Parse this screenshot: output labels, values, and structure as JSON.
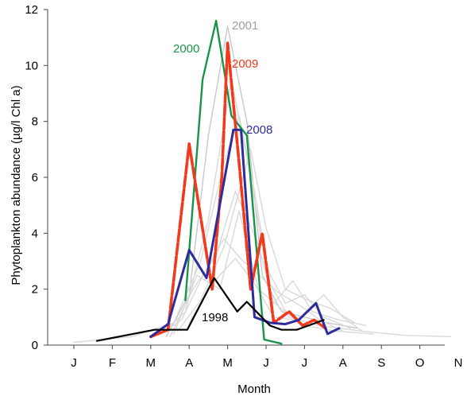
{
  "chart_data": {
    "type": "line",
    "xlabel": "Month",
    "ylabel": "Phytoplankton abundance (µg/l Chl a)",
    "ylim": [
      0,
      12
    ],
    "yticks": [
      0,
      2,
      4,
      6,
      8,
      10,
      12
    ],
    "categories": [
      "J",
      "F",
      "M",
      "A",
      "M",
      "J",
      "J",
      "A",
      "S",
      "O",
      "N"
    ],
    "xlim": [
      0,
      10
    ],
    "grid": false,
    "legend": "none",
    "series": [
      {
        "name": "2000",
        "color": "#18944a",
        "emphasis": true,
        "points": [
          [
            2.9,
            1.6
          ],
          [
            3.35,
            9.5
          ],
          [
            3.7,
            11.6
          ],
          [
            4.1,
            8.2
          ],
          [
            4.5,
            7.5
          ],
          [
            4.95,
            0.2
          ],
          [
            5.4,
            0.05
          ]
        ]
      },
      {
        "name": "2009",
        "color": "#f2391c",
        "emphasis": true,
        "points": [
          [
            2.0,
            0.3
          ],
          [
            2.45,
            0.55
          ],
          [
            3.0,
            7.2
          ],
          [
            3.25,
            5.0
          ],
          [
            3.6,
            2.0
          ],
          [
            3.85,
            6.0
          ],
          [
            4.0,
            10.8
          ],
          [
            4.3,
            6.5
          ],
          [
            4.6,
            2.0
          ],
          [
            4.9,
            4.0
          ],
          [
            5.2,
            0.8
          ],
          [
            5.6,
            1.2
          ],
          [
            5.95,
            0.7
          ],
          [
            6.25,
            0.9
          ],
          [
            6.55,
            0.6
          ]
        ]
      },
      {
        "name": "2008",
        "color": "#2e2c9c",
        "emphasis": true,
        "points": [
          [
            2.0,
            0.3
          ],
          [
            2.45,
            0.75
          ],
          [
            3.0,
            3.4
          ],
          [
            3.45,
            2.4
          ],
          [
            4.15,
            7.7
          ],
          [
            4.35,
            7.7
          ],
          [
            4.7,
            1.0
          ],
          [
            5.1,
            0.8
          ],
          [
            5.5,
            0.75
          ],
          [
            5.85,
            0.9
          ],
          [
            6.3,
            1.5
          ],
          [
            6.6,
            0.4
          ],
          [
            6.9,
            0.6
          ]
        ]
      },
      {
        "name": "1998",
        "color": "#000000",
        "emphasis": true,
        "points": [
          [
            0.6,
            0.15
          ],
          [
            2.1,
            0.55
          ],
          [
            2.95,
            0.55
          ],
          [
            3.65,
            2.4
          ],
          [
            4.25,
            1.2
          ],
          [
            4.5,
            1.55
          ],
          [
            5.1,
            0.7
          ],
          [
            5.4,
            0.55
          ],
          [
            5.8,
            0.55
          ],
          [
            6.5,
            0.9
          ]
        ]
      },
      {
        "name": "2001",
        "color": "#c8c8c8",
        "emphasis": false,
        "points": [
          [
            2.4,
            0.3
          ],
          [
            3.0,
            1.8
          ],
          [
            3.5,
            7.5
          ],
          [
            4.0,
            11.4
          ],
          [
            4.5,
            8.0
          ],
          [
            4.9,
            2.5
          ],
          [
            5.4,
            1.2
          ],
          [
            6.0,
            1.0
          ],
          [
            6.6,
            0.8
          ],
          [
            7.4,
            0.6
          ]
        ]
      },
      {
        "name": "",
        "color": "#d9d9d9",
        "emphasis": false,
        "points": [
          [
            0.0,
            0.1
          ],
          [
            1.5,
            0.3
          ],
          [
            2.6,
            0.8
          ],
          [
            3.3,
            3.0
          ],
          [
            3.9,
            6.5
          ],
          [
            4.3,
            8.2
          ],
          [
            4.7,
            5.5
          ],
          [
            5.1,
            2.2
          ],
          [
            5.6,
            1.0
          ],
          [
            6.4,
            0.7
          ],
          [
            7.5,
            0.5
          ],
          [
            8.6,
            0.35
          ],
          [
            9.8,
            0.3
          ]
        ]
      },
      {
        "name": "",
        "color": "#d9d9d9",
        "emphasis": false,
        "points": [
          [
            2.3,
            0.4
          ],
          [
            2.9,
            1.2
          ],
          [
            3.5,
            4.5
          ],
          [
            4.1,
            9.5
          ],
          [
            4.6,
            6.0
          ],
          [
            5.0,
            2.8
          ],
          [
            5.5,
            1.5
          ],
          [
            6.0,
            1.8
          ],
          [
            6.5,
            1.0
          ],
          [
            7.2,
            0.6
          ]
        ]
      },
      {
        "name": "",
        "color": "#d9d9d9",
        "emphasis": false,
        "points": [
          [
            2.5,
            0.3
          ],
          [
            3.1,
            2.0
          ],
          [
            3.7,
            3.2
          ],
          [
            4.2,
            5.5
          ],
          [
            4.8,
            3.6
          ],
          [
            5.2,
            1.5
          ],
          [
            5.7,
            2.3
          ],
          [
            6.2,
            1.2
          ],
          [
            6.9,
            0.9
          ],
          [
            7.6,
            0.7
          ]
        ]
      },
      {
        "name": "",
        "color": "#d9d9d9",
        "emphasis": false,
        "points": [
          [
            2.2,
            0.35
          ],
          [
            2.8,
            0.9
          ],
          [
            3.4,
            2.6
          ],
          [
            3.9,
            3.8
          ],
          [
            4.4,
            3.0
          ],
          [
            4.9,
            2.4
          ],
          [
            5.3,
            1.9
          ],
          [
            5.9,
            1.4
          ],
          [
            6.4,
            0.9
          ],
          [
            7.0,
            0.5
          ]
        ]
      },
      {
        "name": "",
        "color": "#d9d9d9",
        "emphasis": false,
        "points": [
          [
            2.6,
            0.4
          ],
          [
            3.2,
            2.5
          ],
          [
            3.8,
            2.0
          ],
          [
            4.3,
            4.8
          ],
          [
            4.8,
            2.0
          ],
          [
            5.4,
            1.3
          ],
          [
            6.0,
            0.7
          ],
          [
            6.8,
            0.5
          ],
          [
            7.8,
            0.4
          ]
        ]
      },
      {
        "name": "",
        "color": "#d9d9d9",
        "emphasis": false,
        "points": [
          [
            2.7,
            0.5
          ],
          [
            3.3,
            1.6
          ],
          [
            3.9,
            3.5
          ],
          [
            4.6,
            7.0
          ],
          [
            5.0,
            4.2
          ],
          [
            5.5,
            2.0
          ],
          [
            6.1,
            1.6
          ],
          [
            6.7,
            1.3
          ],
          [
            7.3,
            0.8
          ]
        ]
      },
      {
        "name": "",
        "color": "#d9d9d9",
        "emphasis": false,
        "points": [
          [
            3.0,
            0.8
          ],
          [
            3.6,
            2.2
          ],
          [
            4.2,
            3.1
          ],
          [
            4.7,
            2.2
          ],
          [
            5.2,
            1.0
          ],
          [
            5.8,
            0.9
          ],
          [
            6.5,
            1.8
          ],
          [
            7.0,
            1.0
          ],
          [
            7.5,
            0.5
          ]
        ]
      }
    ]
  }
}
